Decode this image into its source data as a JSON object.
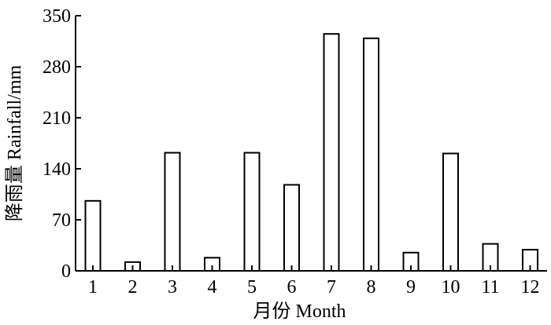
{
  "chart_data": {
    "type": "bar",
    "categories": [
      "1",
      "2",
      "3",
      "4",
      "5",
      "6",
      "7",
      "8",
      "9",
      "10",
      "11",
      "12"
    ],
    "values": [
      96,
      12,
      162,
      18,
      162,
      118,
      325,
      319,
      25,
      161,
      37,
      29
    ],
    "ylabel": "降雨量 Rainfall/mm",
    "xlabel": "月份 Month",
    "ylim": [
      0,
      350
    ],
    "yticks": [
      "0",
      "70",
      "140",
      "210",
      "280",
      "350"
    ],
    "grid": false,
    "legend": "none",
    "colors": {
      "bar_fill": "#ffffff",
      "bar_stroke": "#000000"
    }
  }
}
